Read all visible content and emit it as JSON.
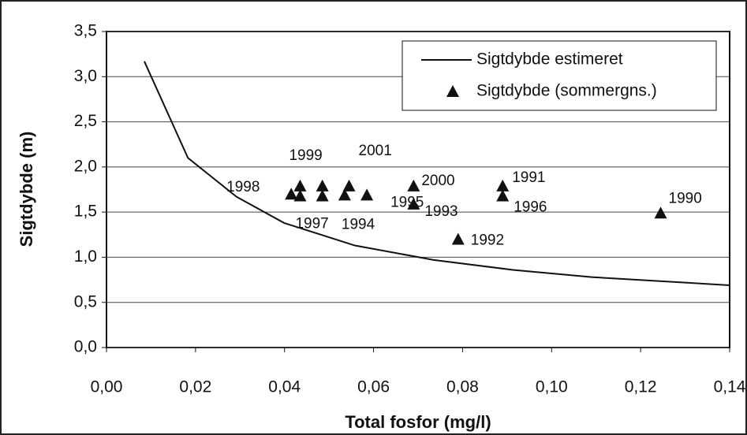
{
  "chart_data": {
    "type": "combo",
    "x_label": "Total fosfor (mg/l)",
    "y_label": "Sigtdybde (m)",
    "xlim": [
      0,
      0.14
    ],
    "xticks": [
      {
        "value": 0,
        "label": "0,00"
      },
      {
        "value": 0.02,
        "label": "0,02"
      },
      {
        "value": 0.04,
        "label": "0,04"
      },
      {
        "value": 0.06,
        "label": "0,06"
      },
      {
        "value": 0.08,
        "label": "0,08"
      },
      {
        "value": 0.1,
        "label": "0,10"
      },
      {
        "value": 0.12,
        "label": "0,12"
      },
      {
        "value": 0.14,
        "label": "0,14"
      }
    ],
    "ylim": [
      0,
      3.5
    ],
    "yticks": [
      {
        "value": 0,
        "label": "0,0"
      },
      {
        "value": 0.5,
        "label": "0,5"
      },
      {
        "value": 1.0,
        "label": "1,0"
      },
      {
        "value": 1.5,
        "label": "1,5"
      },
      {
        "value": 2.0,
        "label": "2,0"
      },
      {
        "value": 2.5,
        "label": "2,5"
      },
      {
        "value": 3.0,
        "label": "3,0"
      },
      {
        "value": 3.5,
        "label": "3,5"
      }
    ],
    "grid": true,
    "legend": "top-right",
    "series": [
      {
        "name": "Sigtdybde estimeret",
        "type": "line",
        "color": "#111111",
        "x": [
          0.0085,
          0.0183,
          0.0292,
          0.0399,
          0.0558,
          0.0735,
          0.0913,
          0.109,
          0.14
        ],
        "values": [
          3.17,
          2.1,
          1.67,
          1.38,
          1.13,
          0.97,
          0.86,
          0.78,
          0.69
        ]
      },
      {
        "name": "Sigtdybde (sommergns.)",
        "type": "scatter",
        "color": "#111111",
        "x": [
          0.0415,
          0.0435,
          0.0435,
          0.0485,
          0.0485,
          0.0535,
          0.0545,
          0.0585,
          0.069,
          0.069,
          0.079,
          0.089,
          0.089,
          0.1245
        ],
        "values": [
          1.7,
          1.79,
          1.68,
          1.79,
          1.68,
          1.69,
          1.79,
          1.69,
          1.79,
          1.59,
          1.2,
          1.79,
          1.68,
          1.49
        ],
        "point_labels": [
          "1998",
          "1999",
          "1997",
          null,
          null,
          "1994",
          "2001",
          "1995",
          "2000",
          "1993",
          "1992",
          "1991",
          "1996",
          "1990"
        ]
      }
    ]
  }
}
